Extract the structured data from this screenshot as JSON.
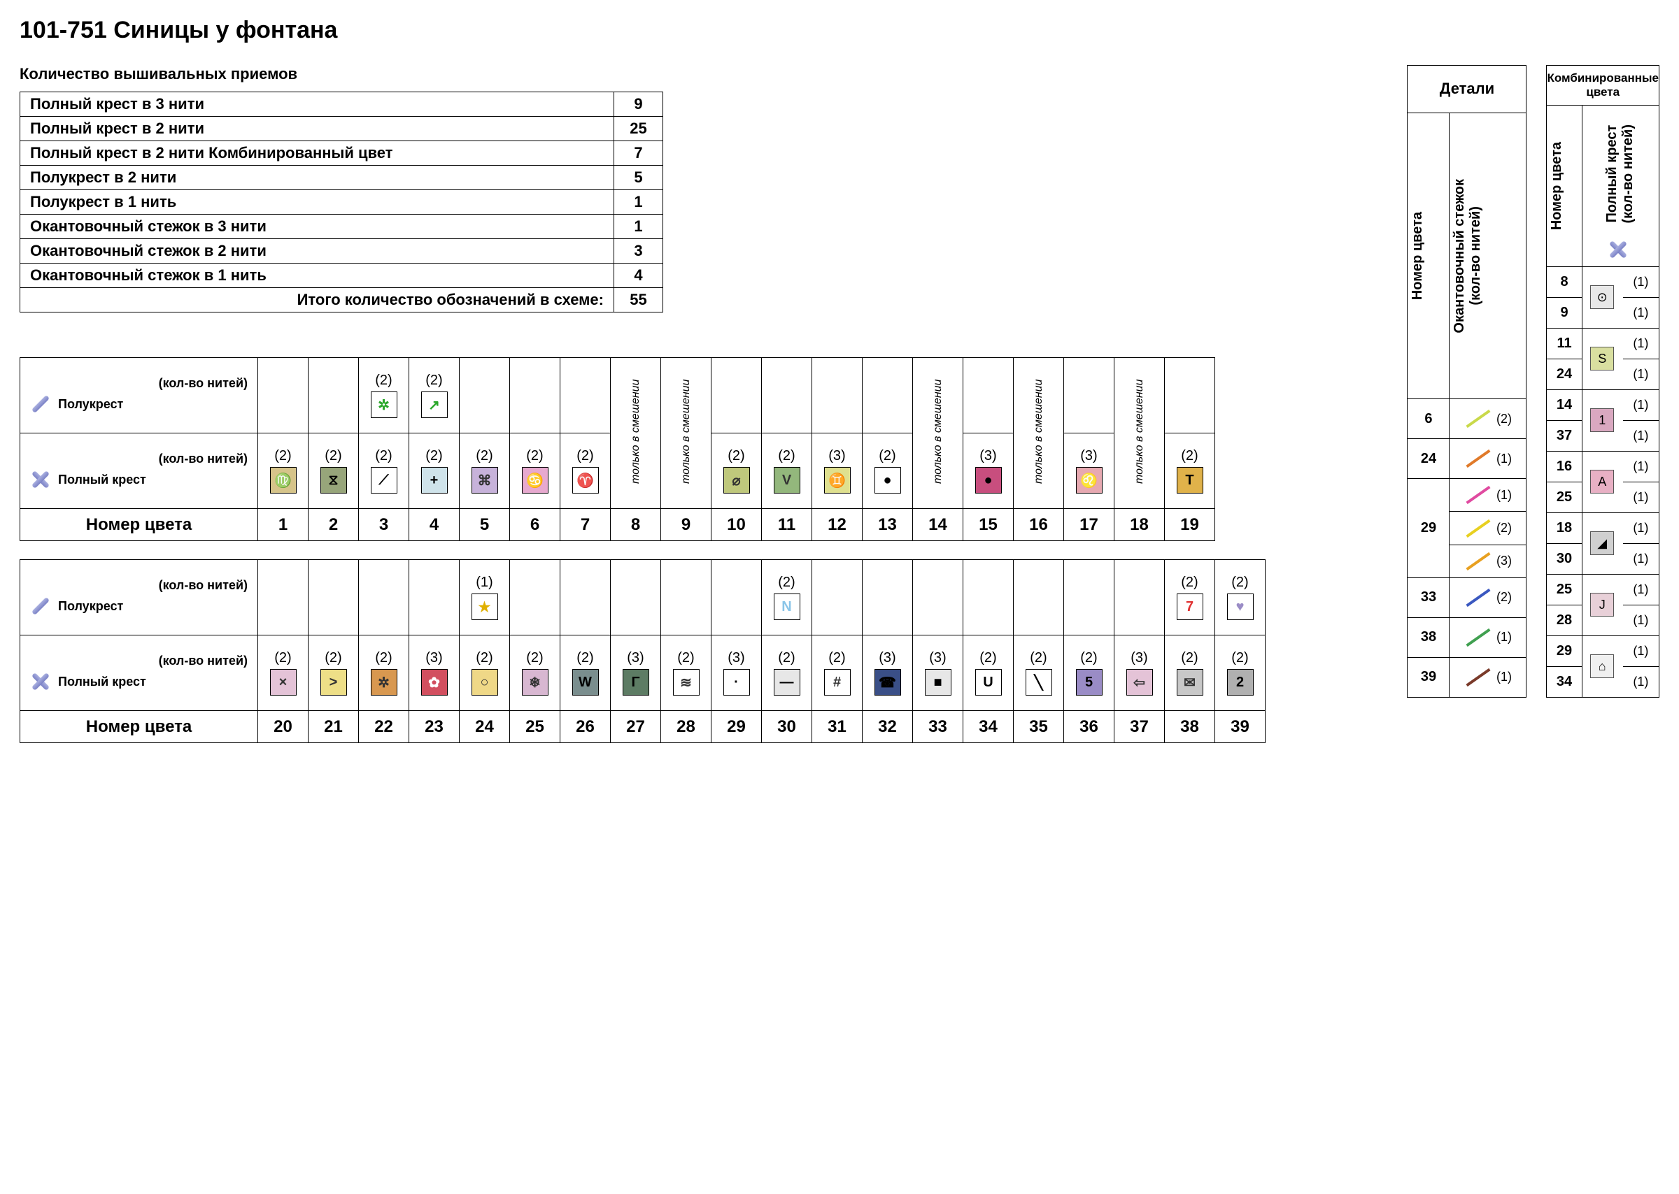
{
  "title": "101-751 Синицы у фонтана",
  "summary_heading": "Количество вышивальных приемов",
  "summary_rows": [
    {
      "label": "Полный крест в 3 нити",
      "value": "9"
    },
    {
      "label": "Полный крест в 2 нити",
      "value": "25"
    },
    {
      "label": "Полный крест в 2 нити Комбинированный цвет",
      "value": "7"
    },
    {
      "label": "Полукрест в 2 нити",
      "value": "5"
    },
    {
      "label": "Полукрест в 1 нить",
      "value": "1"
    },
    {
      "label": "Окантовочный стежок в 3 нити",
      "value": "1"
    },
    {
      "label": "Окантовочный стежок в 2 нити",
      "value": "3"
    },
    {
      "label": "Окантовочный стежок в 1 нить",
      "value": "4"
    }
  ],
  "summary_total_label": "Итого количество обозначений в схеме:",
  "summary_total_value": "55",
  "row_threads_label": "(кол-во нитей)",
  "row_half_label": "Полукрест",
  "row_full_label": "Полный крест",
  "row_num_label": "Номер цвета",
  "mix_only_text": "только в смешении",
  "table1": {
    "half": [
      null,
      null,
      {
        "t": "(2)",
        "s": "✲",
        "bg": "#ffffff",
        "fg": "#2aa82a"
      },
      {
        "t": "(2)",
        "s": "↗",
        "bg": "#ffffff",
        "fg": "#2aa82a"
      },
      null,
      null,
      null,
      "mix",
      "mix",
      null,
      null,
      null,
      null,
      "mix",
      null,
      "mix",
      null,
      "mix",
      null
    ],
    "full": [
      {
        "t": "(2)",
        "s": "♍",
        "bg": "#d6c48a",
        "fg": "#333"
      },
      {
        "t": "(2)",
        "s": "⧖",
        "bg": "#97a57a",
        "fg": "#000"
      },
      {
        "t": "(2)",
        "s": "⟋",
        "bg": "#ffffff",
        "fg": "#000"
      },
      {
        "t": "(2)",
        "s": "+",
        "bg": "#cfe3ea",
        "fg": "#000"
      },
      {
        "t": "(2)",
        "s": "⌘",
        "bg": "#c7b2da",
        "fg": "#333"
      },
      {
        "t": "(2)",
        "s": "♋",
        "bg": "#e7a9cf",
        "fg": "#333"
      },
      {
        "t": "(2)",
        "s": "♈",
        "bg": "#ffffff",
        "fg": "#c9504e"
      },
      "mix",
      "mix",
      {
        "t": "(2)",
        "s": "⌀",
        "bg": "#bfc87c",
        "fg": "#333"
      },
      {
        "t": "(2)",
        "s": "V",
        "bg": "#93b77c",
        "fg": "#333"
      },
      {
        "t": "(3)",
        "s": "♊",
        "bg": "#dfe08f",
        "fg": "#333"
      },
      {
        "t": "(2)",
        "s": "●",
        "bg": "#ffffff",
        "fg": "#000"
      },
      "mix",
      {
        "t": "(3)",
        "s": "●",
        "bg": "#c84e7e",
        "fg": "#000"
      },
      "mix",
      {
        "t": "(3)",
        "s": "♌",
        "bg": "#e7a9b1",
        "fg": "#333"
      },
      "mix",
      {
        "t": "(2)",
        "s": "T",
        "bg": "#e0b24a",
        "fg": "#000"
      }
    ],
    "nums": [
      "1",
      "2",
      "3",
      "4",
      "5",
      "6",
      "7",
      "8",
      "9",
      "10",
      "11",
      "12",
      "13",
      "14",
      "15",
      "16",
      "17",
      "18",
      "19"
    ]
  },
  "table2": {
    "half": [
      null,
      null,
      null,
      null,
      {
        "t": "(1)",
        "s": "★",
        "bg": "#ffffff",
        "fg": "#e0b000"
      },
      null,
      null,
      null,
      null,
      null,
      {
        "t": "(2)",
        "s": "N",
        "bg": "#ffffff",
        "fg": "#8ac5e8"
      },
      null,
      null,
      null,
      null,
      null,
      null,
      null,
      {
        "t": "(2)",
        "s": "7",
        "bg": "#ffffff",
        "fg": "#e03030"
      },
      {
        "t": "(2)",
        "s": "♥",
        "bg": "#ffffff",
        "fg": "#9a8cc6"
      }
    ],
    "full": [
      {
        "t": "(2)",
        "s": "×",
        "bg": "#e4c3d7",
        "fg": "#333"
      },
      {
        "t": "(2)",
        "s": ">",
        "bg": "#eedf87",
        "fg": "#333"
      },
      {
        "t": "(2)",
        "s": "✲",
        "bg": "#d89850",
        "fg": "#333"
      },
      {
        "t": "(3)",
        "s": "✿",
        "bg": "#d24f5f",
        "fg": "#fff"
      },
      {
        "t": "(2)",
        "s": "○",
        "bg": "#efd887",
        "fg": "#333"
      },
      {
        "t": "(2)",
        "s": "❄",
        "bg": "#d8b7d1",
        "fg": "#333"
      },
      {
        "t": "(2)",
        "s": "W",
        "bg": "#7a8e8e",
        "fg": "#000"
      },
      {
        "t": "(3)",
        "s": "Γ",
        "bg": "#5d7c64",
        "fg": "#000"
      },
      {
        "t": "(2)",
        "s": "≋",
        "bg": "#ffffff",
        "fg": "#333"
      },
      {
        "t": "(3)",
        "s": "·",
        "bg": "#ffffff",
        "fg": "#000"
      },
      {
        "t": "(2)",
        "s": "—",
        "bg": "#e7e7e7",
        "fg": "#000"
      },
      {
        "t": "(2)",
        "s": "#",
        "bg": "#ffffff",
        "fg": "#333"
      },
      {
        "t": "(3)",
        "s": "☎",
        "bg": "#3a4f87",
        "fg": "#000"
      },
      {
        "t": "(3)",
        "s": "■",
        "bg": "#e7e7e7",
        "fg": "#000"
      },
      {
        "t": "(2)",
        "s": "U",
        "bg": "#ffffff",
        "fg": "#000"
      },
      {
        "t": "(2)",
        "s": "╲",
        "bg": "#ffffff",
        "fg": "#000"
      },
      {
        "t": "(2)",
        "s": "5",
        "bg": "#9a8cc6",
        "fg": "#000"
      },
      {
        "t": "(3)",
        "s": "⇦",
        "bg": "#e4c3d7",
        "fg": "#333"
      },
      {
        "t": "(2)",
        "s": "✉",
        "bg": "#c8c8c8",
        "fg": "#333"
      },
      {
        "t": "(2)",
        "s": "2",
        "bg": "#b0b0b0",
        "fg": "#000"
      }
    ],
    "nums": [
      "20",
      "21",
      "22",
      "23",
      "24",
      "25",
      "26",
      "27",
      "28",
      "29",
      "30",
      "31",
      "32",
      "33",
      "34",
      "35",
      "36",
      "37",
      "38",
      "39"
    ]
  },
  "details": {
    "header": "Детали",
    "col1": "Номер цвета",
    "col2": "Окантовочный стежок",
    "col2b": "(кол-во нитей)",
    "rows": [
      {
        "num": "6",
        "lines": [
          {
            "color": "#c9d94a",
            "t": "(2)"
          }
        ]
      },
      {
        "num": "24",
        "lines": [
          {
            "color": "#e07a2a",
            "t": "(1)"
          }
        ]
      },
      {
        "num": "29",
        "lines": [
          {
            "color": "#e04aa0",
            "t": "(1)"
          },
          {
            "color": "#e8d020",
            "t": "(2)"
          },
          {
            "color": "#e8a020",
            "t": "(3)"
          }
        ]
      },
      {
        "num": "33",
        "lines": [
          {
            "color": "#3a58c0",
            "t": "(2)"
          }
        ]
      },
      {
        "num": "38",
        "lines": [
          {
            "color": "#40a050",
            "t": "(1)"
          }
        ]
      },
      {
        "num": "39",
        "lines": [
          {
            "color": "#7a3a2a",
            "t": "(1)"
          }
        ]
      }
    ]
  },
  "combi": {
    "header": "Комбинированные цвета",
    "col1": "Номер цвета",
    "col2": "Полный крест",
    "col2b": "(кол-во нитей)",
    "pairs": [
      {
        "nums": [
          "8",
          "9"
        ],
        "sym": "⊙",
        "bg": "#e8e8e8",
        "paren": [
          "(1)",
          "(1)"
        ]
      },
      {
        "nums": [
          "11",
          "24"
        ],
        "sym": "S",
        "bg": "#d9dfa0",
        "paren": [
          "(1)",
          "(1)"
        ]
      },
      {
        "nums": [
          "14",
          "37"
        ],
        "sym": "1",
        "bg": "#d9a8c0",
        "paren": [
          "(1)",
          "(1)"
        ]
      },
      {
        "nums": [
          "16",
          "25"
        ],
        "sym": "A",
        "bg": "#e8b0c4",
        "paren": [
          "(1)",
          "(1)"
        ]
      },
      {
        "nums": [
          "18",
          "30"
        ],
        "sym": "◢",
        "bg": "#d0d0d0",
        "paren": [
          "(1)",
          "(1)"
        ]
      },
      {
        "nums": [
          "25",
          "28"
        ],
        "sym": "J",
        "bg": "#e8d0d8",
        "paren": [
          "(1)",
          "(1)"
        ]
      },
      {
        "nums": [
          "29",
          "34"
        ],
        "sym": "⌂",
        "bg": "#f0f0f0",
        "paren": [
          "(1)",
          "(1)"
        ]
      }
    ]
  }
}
